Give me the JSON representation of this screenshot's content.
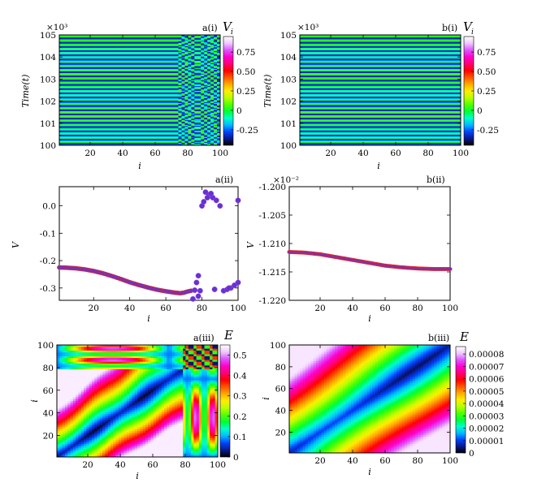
{
  "colorscale": [
    "#000000",
    "#0a1a8c",
    "#0044ff",
    "#00bbff",
    "#00ffcc",
    "#00ff33",
    "#55ff00",
    "#bbff00",
    "#ffee00",
    "#ffaa00",
    "#ff5500",
    "#ff0000",
    "#ff0077",
    "#ff00cc",
    "#dd55ff",
    "#f0c8ff",
    "#ffffff"
  ],
  "panels": {
    "ai": {
      "label": "a(i)",
      "ylabel": "Time(t)",
      "xlabel": "i",
      "exponent": "×10³",
      "cbar_title": "V",
      "cbar_sub": "i"
    },
    "bi": {
      "label": "b(i)",
      "ylabel": "Time(t)",
      "xlabel": "i",
      "exponent": "×10³",
      "cbar_title": "V",
      "cbar_sub": "i"
    },
    "aii": {
      "label": "a(ii)",
      "ylabel": "V",
      "ylabel_sub": "i",
      "xlabel": "i"
    },
    "bii": {
      "label": "b(ii)",
      "ylabel": "V",
      "ylabel_sub": "i",
      "xlabel": "i",
      "exponent": "×10⁻²"
    },
    "aiii": {
      "label": "a(iii)",
      "ylabel": "i",
      "xlabel": "i",
      "cbar_title": "E"
    },
    "biii": {
      "label": "b(iii)",
      "ylabel": "i",
      "xlabel": "i",
      "cbar_title": "E"
    }
  },
  "chart_data": [
    {
      "id": "a(i)",
      "type": "heatmap",
      "x_ticks": [
        "20",
        "40",
        "60",
        "80",
        "100"
      ],
      "y_ticks": [
        "100",
        "101",
        "102",
        "103",
        "104",
        "105"
      ],
      "xlim": [
        1,
        100
      ],
      "ylim": [
        100,
        105
      ],
      "y_scale": "×10³",
      "colorbar": {
        "title": "V_i",
        "ticks": [
          "0.75",
          "0.50",
          "0.25",
          "0",
          "-0.25"
        ],
        "range": [
          -0.45,
          0.95
        ]
      },
      "description_pattern": "horizontal stripes (traveling wave), chaotic checkerboard region for i > 75"
    },
    {
      "id": "b(i)",
      "type": "heatmap",
      "x_ticks": [
        "20",
        "40",
        "60",
        "80",
        "100"
      ],
      "y_ticks": [
        "100",
        "101",
        "102",
        "103",
        "104",
        "105"
      ],
      "xlim": [
        1,
        100
      ],
      "ylim": [
        100,
        105
      ],
      "y_scale": "×10³",
      "colorbar": {
        "title": "V_i",
        "ticks": [
          "0.75",
          "0.50",
          "0.25",
          "0",
          "-0.25"
        ],
        "range": [
          -0.45,
          0.95
        ]
      }
    },
    {
      "id": "a(ii)",
      "type": "scatter",
      "xlim": [
        1,
        100
      ],
      "ylim": [
        -0.345,
        0.07
      ],
      "x_ticks": [
        "20",
        "40",
        "60",
        "80",
        "100"
      ],
      "y_ticks": [
        "0.0",
        "-0.1",
        "-0.2",
        "-0.3"
      ],
      "x": [
        1,
        5,
        10,
        15,
        20,
        25,
        30,
        35,
        40,
        45,
        50,
        55,
        60,
        65,
        68,
        70,
        72,
        74,
        76,
        78,
        80,
        82,
        84,
        86,
        88,
        90,
        92,
        94,
        96,
        98,
        100
      ],
      "y": [
        -0.225,
        -0.226,
        -0.228,
        -0.232,
        -0.238,
        -0.246,
        -0.256,
        -0.267,
        -0.279,
        -0.289,
        -0.298,
        -0.306,
        -0.312,
        -0.317,
        -0.319,
        -0.317,
        -0.313,
        -0.31,
        -0.308,
        -0.33,
        0.0,
        0.05,
        0.04,
        0.03,
        0.02,
        0.0,
        -0.31,
        -0.305,
        -0.3,
        -0.29,
        -0.28
      ],
      "extra_points": [
        [
          75,
          -0.34
        ],
        [
          78,
          -0.255
        ],
        [
          77,
          -0.28
        ],
        [
          79,
          -0.31
        ],
        [
          83,
          0.03
        ],
        [
          81,
          0.015
        ],
        [
          85,
          0.045
        ],
        [
          87,
          -0.305
        ],
        [
          95,
          -0.3
        ],
        [
          100,
          0.02
        ]
      ]
    },
    {
      "id": "b(ii)",
      "type": "line",
      "xlim": [
        1,
        100
      ],
      "ylim": [
        -1.22,
        -1.2
      ],
      "y_scale": "×10⁻²",
      "x_ticks": [
        "20",
        "40",
        "60",
        "80",
        "100"
      ],
      "y_ticks": [
        "-1.200",
        "-1.205",
        "-1.210",
        "-1.215",
        "-1.220"
      ],
      "x": [
        1,
        10,
        20,
        30,
        40,
        50,
        60,
        70,
        80,
        90,
        100
      ],
      "y": [
        -1.2115,
        -1.2116,
        -1.2119,
        -1.2124,
        -1.2129,
        -1.2134,
        -1.2139,
        -1.2142,
        -1.2144,
        -1.2145,
        -1.2145
      ]
    },
    {
      "id": "a(iii)",
      "type": "heatmap",
      "x_ticks": [
        "20",
        "40",
        "60",
        "80",
        "100"
      ],
      "y_ticks": [
        "20",
        "40",
        "60",
        "80",
        "100"
      ],
      "xlim": [
        1,
        100
      ],
      "ylim": [
        1,
        100
      ],
      "colorbar": {
        "title": "E",
        "ticks": [
          "0.5",
          "0.4",
          "0.3",
          "0.2",
          "0.1",
          "0"
        ],
        "range": [
          0,
          0.55
        ]
      }
    },
    {
      "id": "b(iii)",
      "type": "heatmap",
      "x_ticks": [
        "20",
        "40",
        "60",
        "80",
        "100"
      ],
      "y_ticks": [
        "20",
        "40",
        "60",
        "80",
        "100"
      ],
      "xlim": [
        1,
        100
      ],
      "ylim": [
        1,
        100
      ],
      "colorbar": {
        "title": "E",
        "ticks": [
          "0.00008",
          "0.00007",
          "0.00006",
          "0.00005",
          "0.00004",
          "0.00003",
          "0.00002",
          "0.00001",
          "0"
        ],
        "range": [
          0,
          8.6e-05
        ]
      }
    }
  ]
}
